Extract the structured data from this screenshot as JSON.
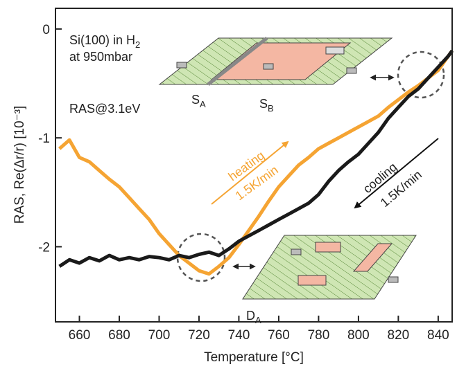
{
  "chart_data": {
    "type": "line",
    "x_label": "Temperature [°C]",
    "y_label": "RAS, Re(Δr/r) [10⁻³]",
    "x": [
      650,
      655,
      660,
      665,
      670,
      675,
      680,
      685,
      690,
      695,
      700,
      705,
      710,
      715,
      720,
      725,
      730,
      735,
      740,
      745,
      750,
      755,
      760,
      765,
      770,
      775,
      780,
      785,
      790,
      795,
      800,
      805,
      810,
      815,
      820,
      825,
      830,
      835,
      840,
      845,
      847
    ],
    "series": [
      {
        "name": "heating",
        "color": "#f5a433",
        "values": [
          -1.1,
          -1.02,
          -1.18,
          -1.22,
          -1.3,
          -1.38,
          -1.45,
          -1.55,
          -1.65,
          -1.75,
          -1.88,
          -1.98,
          -2.08,
          -2.15,
          -2.22,
          -2.25,
          -2.18,
          -2.1,
          -1.98,
          -1.85,
          -1.72,
          -1.58,
          -1.45,
          -1.35,
          -1.25,
          -1.18,
          -1.1,
          -1.05,
          -1.0,
          -0.95,
          -0.9,
          -0.85,
          -0.8,
          -0.72,
          -0.65,
          -0.58,
          -0.52,
          -0.45,
          -0.38,
          -0.25,
          -0.2
        ]
      },
      {
        "name": "cooling",
        "color": "#1a1a1a",
        "values": [
          -2.18,
          -2.12,
          -2.15,
          -2.1,
          -2.13,
          -2.08,
          -2.12,
          -2.1,
          -2.12,
          -2.09,
          -2.1,
          -2.12,
          -2.08,
          -2.1,
          -2.07,
          -2.05,
          -2.08,
          -2.02,
          -1.95,
          -1.9,
          -1.85,
          -1.8,
          -1.75,
          -1.7,
          -1.65,
          -1.6,
          -1.52,
          -1.4,
          -1.3,
          -1.22,
          -1.15,
          -1.05,
          -0.95,
          -0.82,
          -0.72,
          -0.62,
          -0.55,
          -0.45,
          -0.35,
          -0.25,
          -0.2
        ]
      }
    ],
    "xlim": [
      648,
      847
    ],
    "xticks": [
      660,
      680,
      700,
      720,
      740,
      760,
      780,
      800,
      820,
      840
    ],
    "ylim": [
      -2.69,
      0.19
    ],
    "yticks": [
      0,
      -1,
      -2
    ],
    "annotations": {
      "sample": {
        "text": "Si(100) in H",
        "sub": "2"
      },
      "pressure": "at 950mbar",
      "probe": "RAS@3.1eV",
      "heating": "heating",
      "heating_rate": "1.5K/min",
      "cooling": "cooling",
      "cooling_rate": "1.5K/min",
      "sa": {
        "text": "S",
        "sub": "A"
      },
      "sb": {
        "text": "S",
        "sub": "B"
      },
      "da": {
        "text": "D",
        "sub": "A"
      }
    }
  }
}
